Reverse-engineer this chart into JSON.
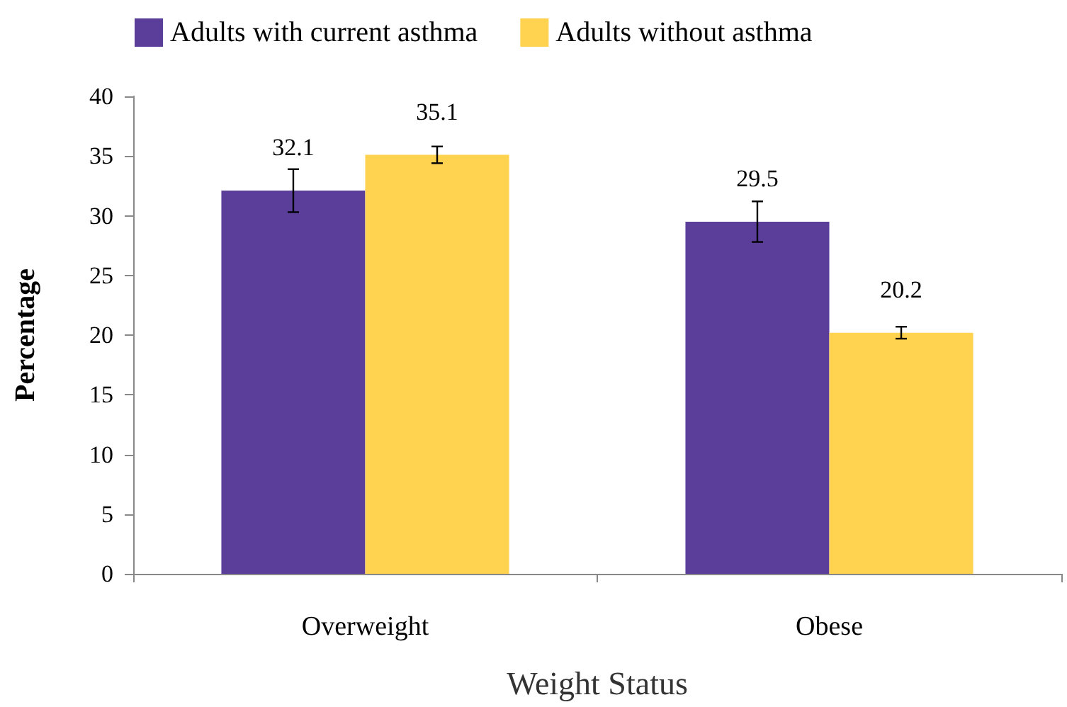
{
  "chart_data": {
    "type": "bar",
    "xlabel": "Weight Status",
    "ylabel": "Percentage",
    "categories": [
      "Overweight",
      "Obese"
    ],
    "series": [
      {
        "name": "Adults with current asthma",
        "color": "#5a3e9a",
        "values": [
          32.1,
          29.5
        ],
        "errors": [
          1.8,
          1.7
        ]
      },
      {
        "name": "Adults without asthma",
        "color": "#ffd24f",
        "values": [
          35.1,
          20.2
        ],
        "errors": [
          0.7,
          0.5
        ]
      }
    ],
    "ylim": [
      0,
      40
    ],
    "yticks": [
      0,
      5,
      10,
      15,
      20,
      25,
      30,
      35,
      40
    ],
    "grid": false,
    "legend": "top",
    "data_labels": true
  }
}
